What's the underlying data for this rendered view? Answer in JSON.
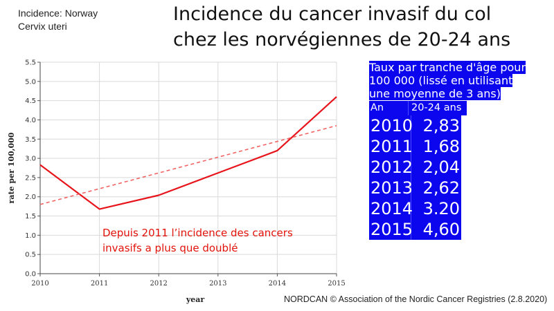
{
  "header": {
    "source_line1": "Incidence: Norway",
    "source_line2": "Cervix uteri",
    "title_line1": "Incidence du cancer invasif du col",
    "title_line2": "chez les norvégiennes de 20-24 ans"
  },
  "annotation": {
    "line1": "Depuis 2011 l’incidence des cancers",
    "line2": "invasifs a plus que doublé"
  },
  "footer": "NORDCAN © Association of the Nordic Cancer Registries (2.8.2020)",
  "table": {
    "header_line1": "Taux par tranche d'âge pour",
    "header_line2": "100 000 (lissé en utilisant",
    "header_line3": "une moyenne de 3 ans)",
    "col_year": "An",
    "col_value": "20-24 ans",
    "rows": [
      {
        "year": "2010",
        "value": "2,83"
      },
      {
        "year": "2011",
        "value": "1,68"
      },
      {
        "year": "2012",
        "value": "2,04"
      },
      {
        "year": "2013",
        "value": "2,62"
      },
      {
        "year": "2014",
        "value": "3.20"
      },
      {
        "year": "2015",
        "value": "4,60"
      }
    ]
  },
  "colors": {
    "series": "#e8141b",
    "trend": "#f26363",
    "table_bg": "#0b06ee",
    "grid": "#d9d9d9"
  },
  "chart_data": {
    "type": "line",
    "xlabel": "year",
    "ylabel": "rate per 100,000",
    "xlim": [
      2010,
      2015
    ],
    "ylim": [
      0,
      5.5
    ],
    "x_ticks": [
      "2010",
      "2011",
      "2012",
      "2013",
      "2014",
      "2015"
    ],
    "y_ticks": [
      "0.0",
      "0.5",
      "1.0",
      "1.5",
      "2.0",
      "2.5",
      "3.0",
      "3.5",
      "4.0",
      "4.5",
      "5.0",
      "5.5"
    ],
    "grid": true,
    "series": [
      {
        "style": "solid",
        "x": [
          2010,
          2011,
          2012,
          2013,
          2014,
          2015
        ],
        "y": [
          2.83,
          1.68,
          2.04,
          2.62,
          3.2,
          4.6
        ]
      },
      {
        "style": "dashed",
        "x": [
          2010,
          2015
        ],
        "y": [
          1.8,
          3.85
        ]
      }
    ]
  }
}
